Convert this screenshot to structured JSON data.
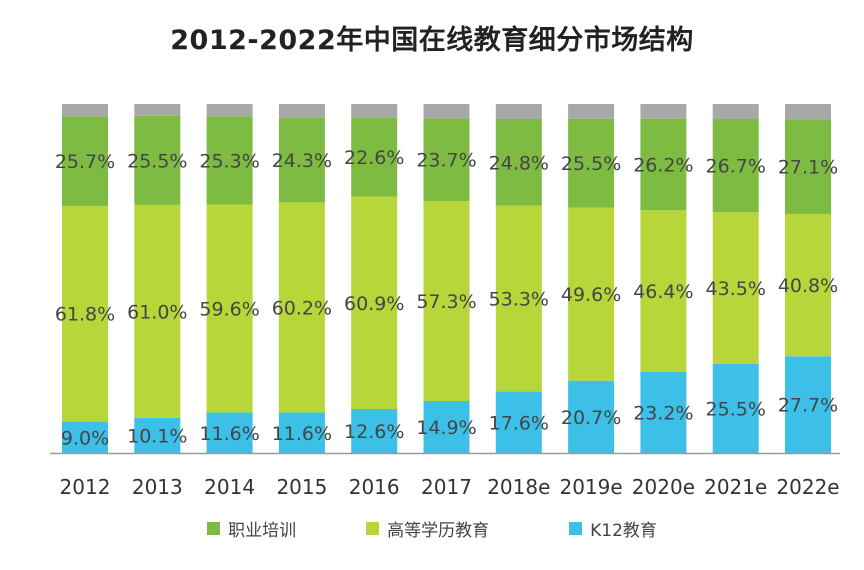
{
  "chart_data": {
    "type": "bar",
    "stacked": true,
    "title": "2012-2022年中国在线教育细分市场结构",
    "categories": [
      "2012",
      "2013",
      "2014",
      "2015",
      "2016",
      "2017",
      "2018e",
      "2019e",
      "2020e",
      "2021e",
      "2022e"
    ],
    "series": [
      {
        "name": "K12教育",
        "color": "#3cc0e8",
        "values": [
          9.0,
          10.1,
          11.6,
          11.6,
          12.6,
          14.9,
          17.6,
          20.7,
          23.2,
          25.5,
          27.7
        ],
        "labels": [
          "9.0%",
          "10.1%",
          "11.6%",
          "11.6%",
          "12.6%",
          "14.9%",
          "17.6%",
          "20.7%",
          "23.2%",
          "25.5%",
          "27.7%"
        ]
      },
      {
        "name": "高等学历教育",
        "color": "#b7d63a",
        "values": [
          61.8,
          61.0,
          59.6,
          60.2,
          60.9,
          57.3,
          53.3,
          49.6,
          46.4,
          43.5,
          40.8
        ],
        "labels": [
          "61.8%",
          "61.0%",
          "59.6%",
          "60.2%",
          "60.9%",
          "57.3%",
          "53.3%",
          "49.6%",
          "46.4%",
          "43.5%",
          "40.8%"
        ]
      },
      {
        "name": "职业培训",
        "color": "#7dbb42",
        "values": [
          25.7,
          25.5,
          25.3,
          24.3,
          22.6,
          23.7,
          24.8,
          25.5,
          26.2,
          26.7,
          27.1
        ],
        "labels": [
          "25.7%",
          "25.5%",
          "25.3%",
          "24.3%",
          "22.6%",
          "23.7%",
          "24.8%",
          "25.5%",
          "26.2%",
          "26.7%",
          "27.1%"
        ]
      }
    ],
    "other_color": "#a8a8a8",
    "legend_order": [
      "职业培训",
      "高等学历教育",
      "K12教育"
    ],
    "ylim": [
      0,
      100
    ],
    "legend_position": "bottom"
  }
}
